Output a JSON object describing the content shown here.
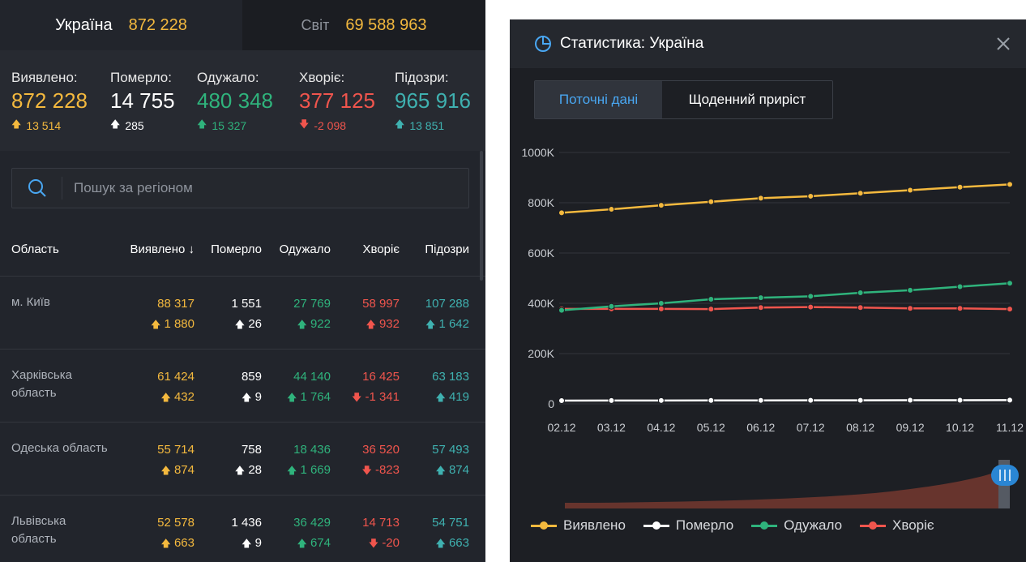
{
  "tabs": {
    "ukraine": {
      "label": "Україна",
      "value": "872 228"
    },
    "world": {
      "label": "Світ",
      "value": "69 588 963"
    }
  },
  "summary": [
    {
      "label": "Виявлено:",
      "value": "872 228",
      "delta": "13 514",
      "color": "yellow",
      "dir": "up"
    },
    {
      "label": "Померло:",
      "value": "14 755",
      "delta": "285",
      "color": "white",
      "dir": "up"
    },
    {
      "label": "Одужало:",
      "value": "480 348",
      "delta": "15 327",
      "color": "green",
      "dir": "up"
    },
    {
      "label": "Хворіє:",
      "value": "377 125",
      "delta": "-2 098",
      "color": "red",
      "dir": "down"
    },
    {
      "label": "Підозри:",
      "value": "965 916",
      "delta": "13 851",
      "color": "teal",
      "dir": "up"
    }
  ],
  "search": {
    "placeholder": "Пошук за регіоном"
  },
  "table": {
    "headers": {
      "region": "Область",
      "detected": "Виявлено",
      "died": "Померло",
      "recovered": "Одужало",
      "sick": "Хворіє",
      "suspected": "Підозри"
    },
    "rows": [
      {
        "region": "м. Київ",
        "detected": "88 317",
        "detected_d": "1 880",
        "died": "1 551",
        "died_d": "26",
        "recovered": "27 769",
        "recovered_d": "922",
        "sick": "58 997",
        "sick_d": "932",
        "sick_dir": "up",
        "suspected": "107 288",
        "suspected_d": "1 642"
      },
      {
        "region": "Харківська область",
        "detected": "61 424",
        "detected_d": "432",
        "died": "859",
        "died_d": "9",
        "recovered": "44 140",
        "recovered_d": "1 764",
        "sick": "16 425",
        "sick_d": "-1 341",
        "sick_dir": "down",
        "suspected": "63 183",
        "suspected_d": "419"
      },
      {
        "region": "Одеська область",
        "detected": "55 714",
        "detected_d": "874",
        "died": "758",
        "died_d": "28",
        "recovered": "18 436",
        "recovered_d": "1 669",
        "sick": "36 520",
        "sick_d": "-823",
        "sick_dir": "down",
        "suspected": "57 493",
        "suspected_d": "874"
      },
      {
        "region": "Львівська область",
        "detected": "52 578",
        "detected_d": "663",
        "died": "1 436",
        "died_d": "9",
        "recovered": "36 429",
        "recovered_d": "674",
        "sick": "14 713",
        "sick_d": "-20",
        "sick_dir": "down",
        "suspected": "54 751",
        "suspected_d": "663"
      }
    ]
  },
  "stats_panel": {
    "title": "Статистика: Україна",
    "tab_current": "Поточні дані",
    "tab_daily": "Щоденний приріст"
  },
  "colors": {
    "yellow": "#f4b93e",
    "white": "#ffffff",
    "green": "#2fb37c",
    "red": "#f0554d",
    "teal": "#3fb1b0",
    "accent": "#49a7f2"
  },
  "chart_data": {
    "type": "line",
    "x": [
      "02.12",
      "03.12",
      "04.12",
      "05.12",
      "06.12",
      "07.12",
      "08.12",
      "09.12",
      "10.12",
      "11.12"
    ],
    "y_ticks": [
      "0",
      "200K",
      "400K",
      "600K",
      "800K",
      "1000K"
    ],
    "ylim": [
      0,
      1000000
    ],
    "grid": true,
    "legend": "bottom",
    "series": [
      {
        "name": "Виявлено",
        "color": "#f4b93e",
        "values": [
          760000,
          774000,
          790000,
          804000,
          818000,
          826000,
          838000,
          850000,
          862000,
          873000
        ]
      },
      {
        "name": "Померло",
        "color": "#ffffff",
        "values": [
          13000,
          13300,
          13500,
          13700,
          13900,
          14100,
          14200,
          14400,
          14600,
          14755
        ]
      },
      {
        "name": "Одужало",
        "color": "#2fb37c",
        "values": [
          372000,
          388000,
          400000,
          416000,
          422000,
          428000,
          442000,
          452000,
          466000,
          480000
        ]
      },
      {
        "name": "Хворіє",
        "color": "#f0554d",
        "values": [
          378000,
          378000,
          378000,
          377000,
          383000,
          385000,
          383000,
          380000,
          380000,
          377000
        ]
      }
    ]
  }
}
